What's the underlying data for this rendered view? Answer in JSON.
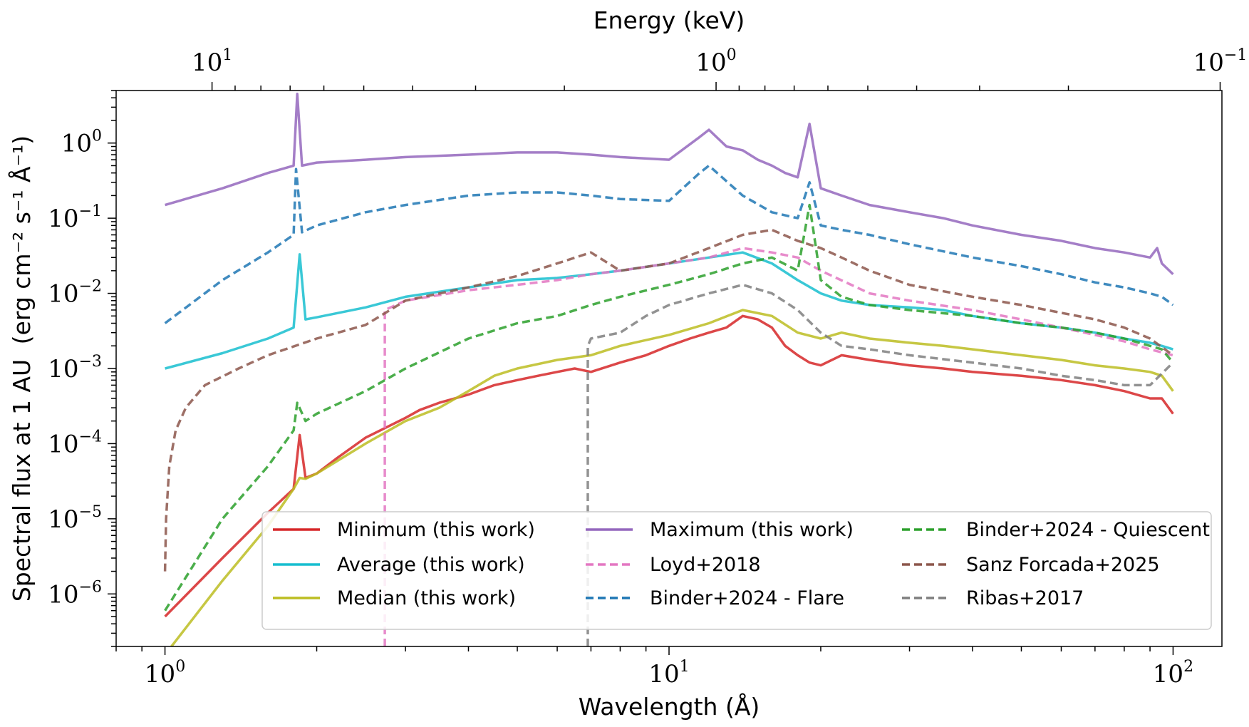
{
  "chart_data": {
    "type": "line",
    "xscale": "log",
    "yscale": "log",
    "xlabel": "Wavelength (Å)",
    "ylabel": "Spectral flux at 1 AU (erg cm⁻² s⁻¹ Å⁻¹)",
    "ylabel_main": "Spectral flux at 1 AU",
    "ylabel_units": "(erg cm⁻² s⁻¹ Å⁻¹)",
    "top_xlabel": "Energy (keV)",
    "xlim": [
      0.8,
      125
    ],
    "ylim": [
      2e-07,
      5
    ],
    "xticks": [
      {
        "value": 1,
        "base": "10",
        "exp": "0"
      },
      {
        "value": 10,
        "base": "10",
        "exp": "1"
      },
      {
        "value": 100,
        "base": "10",
        "exp": "2"
      }
    ],
    "yticks": [
      {
        "value": 1e-06,
        "base": "10",
        "exp": "−6"
      },
      {
        "value": 1e-05,
        "base": "10",
        "exp": "−5"
      },
      {
        "value": 0.0001,
        "base": "10",
        "exp": "−4"
      },
      {
        "value": 0.001,
        "base": "10",
        "exp": "−3"
      },
      {
        "value": 0.01,
        "base": "10",
        "exp": "−2"
      },
      {
        "value": 0.1,
        "base": "10",
        "exp": "−1"
      },
      {
        "value": 1,
        "base": "10",
        "exp": "0"
      }
    ],
    "top_ticks": [
      {
        "energy": 10,
        "base": "10",
        "exp": "1"
      },
      {
        "energy": 1,
        "base": "10",
        "exp": "0"
      },
      {
        "energy": 0.1,
        "base": "10",
        "exp": "−1"
      }
    ],
    "series": [
      {
        "name": "Minimum (this work)",
        "color": "#d62728",
        "dash": "solid",
        "x": [
          1.0,
          1.3,
          1.6,
          1.8,
          1.85,
          1.9,
          2.0,
          2.2,
          2.5,
          3.0,
          3.2,
          3.5,
          4.0,
          4.5,
          5.0,
          5.5,
          6.0,
          6.5,
          7.0,
          8.0,
          9.0,
          10.0,
          11.0,
          12.0,
          13.0,
          14.0,
          15.0,
          16.0,
          17.0,
          18.0,
          19.0,
          20.0,
          22.0,
          25.0,
          30.0,
          35.0,
          40.0,
          50.0,
          60.0,
          70.0,
          80.0,
          90.0,
          95.0,
          100.0
        ],
        "y": [
          5e-07,
          3e-06,
          1.2e-05,
          2.5e-05,
          0.00013,
          3.5e-05,
          4e-05,
          6.5e-05,
          0.00012,
          0.00022,
          0.00028,
          0.00035,
          0.00045,
          0.0006,
          0.0007,
          0.0008,
          0.0009,
          0.001,
          0.0009,
          0.0012,
          0.0015,
          0.002,
          0.0025,
          0.003,
          0.0035,
          0.005,
          0.0045,
          0.0035,
          0.002,
          0.0015,
          0.0012,
          0.0011,
          0.0015,
          0.0013,
          0.0011,
          0.001,
          0.0009,
          0.0008,
          0.0007,
          0.0006,
          0.0005,
          0.0004,
          0.0004,
          0.00025
        ]
      },
      {
        "name": "Average (this work)",
        "color": "#17becf",
        "dash": "solid",
        "x": [
          1.0,
          1.3,
          1.6,
          1.8,
          1.85,
          1.9,
          2.0,
          2.5,
          3.0,
          4.0,
          5.0,
          6.0,
          7.0,
          8.0,
          10.0,
          12.0,
          14.0,
          16.0,
          18.0,
          20.0,
          22.0,
          25.0,
          30.0,
          35.0,
          40.0,
          50.0,
          60.0,
          70.0,
          80.0,
          90.0,
          95.0,
          100.0
        ],
        "y": [
          0.001,
          0.0016,
          0.0025,
          0.0035,
          0.033,
          0.0045,
          0.0048,
          0.0065,
          0.009,
          0.012,
          0.015,
          0.016,
          0.018,
          0.02,
          0.025,
          0.03,
          0.035,
          0.025,
          0.015,
          0.01,
          0.008,
          0.007,
          0.0065,
          0.006,
          0.005,
          0.004,
          0.0035,
          0.003,
          0.0025,
          0.0022,
          0.002,
          0.0018
        ]
      },
      {
        "name": "Median (this work)",
        "color": "#bcbd22",
        "dash": "solid",
        "x": [
          1.03,
          1.3,
          1.6,
          1.8,
          1.85,
          1.9,
          2.0,
          2.5,
          3.0,
          3.5,
          4.0,
          4.5,
          5.0,
          6.0,
          7.0,
          8.0,
          10.0,
          12.0,
          14.0,
          16.0,
          18.0,
          20.0,
          22.0,
          25.0,
          30.0,
          35.0,
          40.0,
          50.0,
          60.0,
          70.0,
          80.0,
          90.0,
          95.0,
          100.0
        ],
        "y": [
          2e-07,
          1.5e-06,
          8e-06,
          2.5e-05,
          3.5e-05,
          3.4e-05,
          4e-05,
          0.0001,
          0.0002,
          0.0003,
          0.0005,
          0.0008,
          0.001,
          0.0013,
          0.0015,
          0.002,
          0.0028,
          0.004,
          0.006,
          0.005,
          0.003,
          0.0025,
          0.003,
          0.0025,
          0.0022,
          0.002,
          0.0018,
          0.0015,
          0.0013,
          0.0011,
          0.001,
          0.0009,
          0.0008,
          0.0005
        ]
      },
      {
        "name": "Maximum (this work)",
        "color": "#9467bd",
        "dash": "solid",
        "x": [
          1.0,
          1.3,
          1.6,
          1.8,
          1.83,
          1.87,
          2.0,
          2.5,
          3.0,
          4.0,
          5.0,
          6.0,
          7.0,
          8.0,
          10.0,
          11.5,
          12.0,
          13.0,
          14.0,
          15.0,
          16.0,
          17.0,
          18.0,
          19.0,
          20.0,
          22.0,
          25.0,
          30.0,
          35.0,
          40.0,
          50.0,
          60.0,
          70.0,
          80.0,
          90.0,
          93.0,
          95.0,
          100.0
        ],
        "y": [
          0.15,
          0.25,
          0.4,
          0.5,
          4.5,
          0.5,
          0.55,
          0.6,
          0.65,
          0.7,
          0.75,
          0.75,
          0.7,
          0.65,
          0.6,
          1.2,
          1.5,
          0.9,
          0.8,
          0.6,
          0.5,
          0.4,
          0.35,
          1.8,
          0.25,
          0.2,
          0.15,
          0.12,
          0.1,
          0.08,
          0.06,
          0.05,
          0.04,
          0.035,
          0.03,
          0.04,
          0.025,
          0.018
        ]
      },
      {
        "name": "Loyd+2018",
        "color": "#e377c2",
        "dash": "dashed",
        "x": [
          2.73,
          2.73,
          3.0,
          4.0,
          5.0,
          6.0,
          7.0,
          8.0,
          10.0,
          12.0,
          14.0,
          16.0,
          18.0,
          20.0,
          25.0,
          30.0,
          40.0,
          50.0,
          60.0,
          70.0,
          80.0,
          90.0,
          100.0
        ],
        "y": [
          2e-07,
          0.006,
          0.008,
          0.011,
          0.013,
          0.015,
          0.018,
          0.02,
          0.025,
          0.03,
          0.04,
          0.035,
          0.03,
          0.02,
          0.01,
          0.008,
          0.006,
          0.0045,
          0.0035,
          0.0028,
          0.0023,
          0.0018,
          0.0015
        ]
      },
      {
        "name": "Binder+2024 - Flare",
        "color": "#1f77b4",
        "dash": "dashed",
        "x": [
          1.0,
          1.3,
          1.6,
          1.8,
          1.82,
          1.87,
          2.0,
          2.5,
          3.0,
          4.0,
          5.0,
          6.0,
          7.0,
          8.0,
          10.0,
          11.5,
          12.0,
          14.0,
          16.0,
          18.0,
          19.0,
          20.0,
          22.0,
          25.0,
          30.0,
          40.0,
          50.0,
          60.0,
          70.0,
          80.0,
          90.0,
          95.0,
          100.0
        ],
        "y": [
          0.004,
          0.015,
          0.035,
          0.06,
          0.45,
          0.065,
          0.08,
          0.12,
          0.15,
          0.2,
          0.22,
          0.22,
          0.2,
          0.18,
          0.17,
          0.4,
          0.5,
          0.2,
          0.12,
          0.1,
          0.3,
          0.08,
          0.07,
          0.06,
          0.045,
          0.03,
          0.023,
          0.018,
          0.014,
          0.012,
          0.01,
          0.009,
          0.007
        ]
      },
      {
        "name": "Binder+2024 - Quiescent",
        "color": "#2ca02c",
        "dash": "dashed",
        "x": [
          1.0,
          1.3,
          1.6,
          1.8,
          1.83,
          1.9,
          2.0,
          2.5,
          3.0,
          4.0,
          5.0,
          6.0,
          7.0,
          8.0,
          10.0,
          12.0,
          14.0,
          16.0,
          18.0,
          19.0,
          20.0,
          22.0,
          25.0,
          30.0,
          40.0,
          50.0,
          60.0,
          70.0,
          80.0,
          90.0,
          95.0,
          100.0
        ],
        "y": [
          6e-07,
          1e-05,
          5e-05,
          0.00015,
          0.00035,
          0.0002,
          0.00025,
          0.0005,
          0.001,
          0.0025,
          0.004,
          0.005,
          0.007,
          0.009,
          0.013,
          0.018,
          0.025,
          0.03,
          0.02,
          0.15,
          0.015,
          0.009,
          0.007,
          0.006,
          0.005,
          0.004,
          0.0035,
          0.003,
          0.0025,
          0.002,
          0.0018,
          0.0012
        ]
      },
      {
        "name": "Sanz Forcada+2025",
        "color": "#8c564b",
        "dash": "dashed",
        "x": [
          1.0,
          1.005,
          1.02,
          1.05,
          1.1,
          1.2,
          1.4,
          1.6,
          2.0,
          2.5,
          3.0,
          4.0,
          5.0,
          6.0,
          7.0,
          8.0,
          10.0,
          12.0,
          14.0,
          16.0,
          18.0,
          20.0,
          22.0,
          25.0,
          30.0,
          40.0,
          50.0,
          60.0,
          70.0,
          80.0,
          90.0,
          100.0
        ],
        "y": [
          2e-06,
          1e-05,
          5e-05,
          0.00015,
          0.0003,
          0.0006,
          0.001,
          0.0015,
          0.0025,
          0.0038,
          0.008,
          0.012,
          0.017,
          0.025,
          0.035,
          0.02,
          0.025,
          0.04,
          0.06,
          0.07,
          0.05,
          0.04,
          0.03,
          0.02,
          0.013,
          0.009,
          0.007,
          0.0055,
          0.0045,
          0.0035,
          0.0025,
          0.0015
        ]
      },
      {
        "name": "Ribas+2017",
        "color": "#7f7f7f",
        "dash": "dashed",
        "x": [
          6.9,
          6.9,
          7.0,
          8.0,
          9.0,
          10.0,
          12.0,
          14.0,
          16.0,
          18.0,
          20.0,
          22.0,
          25.0,
          30.0,
          40.0,
          50.0,
          60.0,
          70.0,
          80.0,
          90.0,
          100.0
        ],
        "y": [
          2e-07,
          0.002,
          0.0025,
          0.003,
          0.005,
          0.007,
          0.01,
          0.013,
          0.01,
          0.006,
          0.003,
          0.002,
          0.0018,
          0.0015,
          0.0012,
          0.001,
          0.0008,
          0.0007,
          0.0006,
          0.0006,
          0.0012
        ]
      }
    ],
    "legend_position": "lower-center",
    "legend_columns": 3,
    "legend_order": [
      [
        "Minimum (this work)",
        "Average (this work)",
        "Median (this work)"
      ],
      [
        "Maximum (this work)",
        "Loyd+2018",
        "Binder+2024 - Flare"
      ],
      [
        "Binder+2024 - Quiescent",
        "Sanz Forcada+2025",
        "Ribas+2017"
      ]
    ]
  }
}
